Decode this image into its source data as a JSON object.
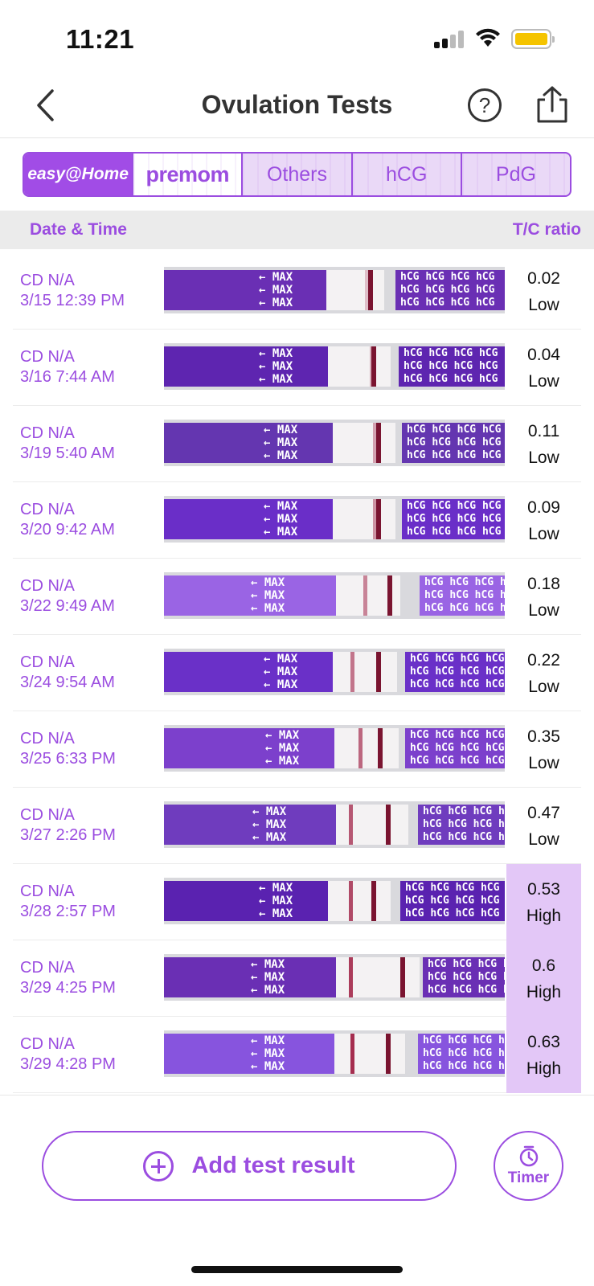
{
  "status_bar": {
    "time": "11:21"
  },
  "nav": {
    "title": "Ovulation Tests",
    "back_icon": "chevron-left-icon",
    "help_label": "?",
    "share_icon": "share-icon"
  },
  "brand_tabs": [
    {
      "label": "easy@Home",
      "active": true
    },
    {
      "label": "premom",
      "active": false
    },
    {
      "label": "Others",
      "active": false
    },
    {
      "label": "hCG",
      "active": false
    },
    {
      "label": "PdG",
      "active": false
    }
  ],
  "table_header": {
    "date_label": "Date & Time",
    "ratio_label": "T/C ratio"
  },
  "rows": [
    {
      "cd": "CD N/A",
      "datetime": "3/15 12:39 PM",
      "ratio": "0.02",
      "level": "Low"
    },
    {
      "cd": "CD N/A",
      "datetime": "3/16 7:44 AM",
      "ratio": "0.04",
      "level": "Low"
    },
    {
      "cd": "CD N/A",
      "datetime": "3/19 5:40 AM",
      "ratio": "0.11",
      "level": "Low"
    },
    {
      "cd": "CD N/A",
      "datetime": "3/20 9:42 AM",
      "ratio": "0.09",
      "level": "Low"
    },
    {
      "cd": "CD N/A",
      "datetime": "3/22 9:49 AM",
      "ratio": "0.18",
      "level": "Low"
    },
    {
      "cd": "CD N/A",
      "datetime": "3/24 9:54 AM",
      "ratio": "0.22",
      "level": "Low"
    },
    {
      "cd": "CD N/A",
      "datetime": "3/25 6:33 PM",
      "ratio": "0.35",
      "level": "Low"
    },
    {
      "cd": "CD N/A",
      "datetime": "3/27 2:26 PM",
      "ratio": "0.47",
      "level": "Low"
    },
    {
      "cd": "CD N/A",
      "datetime": "3/28 2:57 PM",
      "ratio": "0.53",
      "level": "High"
    },
    {
      "cd": "CD N/A",
      "datetime": "3/29 4:25 PM",
      "ratio": "0.6",
      "level": "High"
    },
    {
      "cd": "CD N/A",
      "datetime": "3/29 4:28 PM",
      "ratio": "0.63",
      "level": "High"
    }
  ],
  "strip_text": {
    "arrow_text": "← MAX",
    "control_text": "hCG"
  },
  "actions": {
    "add_label": "Add test result",
    "timer_label": "Timer"
  },
  "colors": {
    "accent": "#9b4de0",
    "high_bg": "#e3c7f7",
    "header_bg": "#ebebeb"
  }
}
